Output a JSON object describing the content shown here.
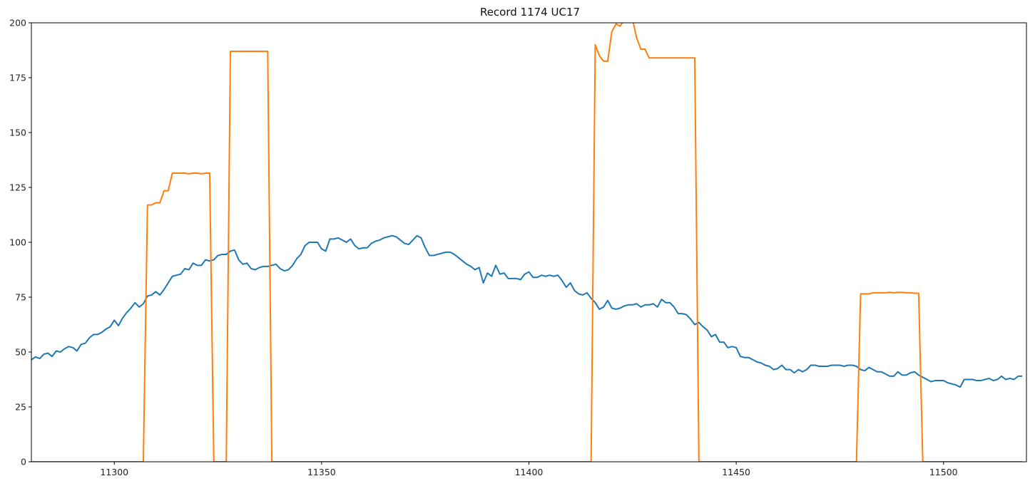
{
  "chart_data": {
    "type": "line",
    "title": "Record 1174 UC17",
    "xlabel": "",
    "ylabel": "",
    "xlim": [
      11280,
      11520
    ],
    "ylim": [
      0,
      200
    ],
    "grid": false,
    "legend": "none",
    "x_ticks": [
      11300,
      11350,
      11400,
      11450,
      11500
    ],
    "y_ticks": [
      0,
      25,
      50,
      75,
      100,
      125,
      150,
      175,
      200
    ],
    "series": [
      {
        "color": "#1f77b4",
        "points": [
          [
            11280,
            46.5
          ],
          [
            11281,
            47.8
          ],
          [
            11282,
            47
          ],
          [
            11283,
            49
          ],
          [
            11284,
            49.5
          ],
          [
            11285,
            48
          ],
          [
            11286,
            50.5
          ],
          [
            11287,
            50
          ],
          [
            11288,
            51.5
          ],
          [
            11289,
            52.5
          ],
          [
            11290,
            52
          ],
          [
            11291,
            50.5
          ],
          [
            11292,
            53.5
          ],
          [
            11293,
            54
          ],
          [
            11294,
            56.5
          ],
          [
            11295,
            58
          ],
          [
            11296,
            58
          ],
          [
            11297,
            59
          ],
          [
            11298,
            60.5
          ],
          [
            11299,
            61.5
          ],
          [
            11300,
            64.5
          ],
          [
            11301,
            62
          ],
          [
            11302,
            65.5
          ],
          [
            11303,
            68
          ],
          [
            11304,
            70
          ],
          [
            11305,
            72.5
          ],
          [
            11306,
            70.5
          ],
          [
            11307,
            72
          ],
          [
            11308,
            75.5
          ],
          [
            11309,
            76
          ],
          [
            11310,
            77.5
          ],
          [
            11311,
            76
          ],
          [
            11312,
            78.5
          ],
          [
            11313,
            81.5
          ],
          [
            11314,
            84.5
          ],
          [
            11315,
            85
          ],
          [
            11316,
            85.5
          ],
          [
            11317,
            88
          ],
          [
            11318,
            87.5
          ],
          [
            11319,
            90.5
          ],
          [
            11320,
            89.5
          ],
          [
            11321,
            89.5
          ],
          [
            11322,
            92
          ],
          [
            11323,
            91.5
          ],
          [
            11324,
            92
          ],
          [
            11325,
            94
          ],
          [
            11326,
            94.5
          ],
          [
            11327,
            94.5
          ],
          [
            11328,
            96
          ],
          [
            11329,
            96.5
          ],
          [
            11330,
            92
          ],
          [
            11331,
            90
          ],
          [
            11332,
            90.5
          ],
          [
            11333,
            88
          ],
          [
            11334,
            87.5
          ],
          [
            11335,
            88.5
          ],
          [
            11336,
            89
          ],
          [
            11337,
            89
          ],
          [
            11338,
            89.5
          ],
          [
            11339,
            90
          ],
          [
            11340,
            88
          ],
          [
            11341,
            87
          ],
          [
            11342,
            87.5
          ],
          [
            11343,
            89.5
          ],
          [
            11344,
            92.5
          ],
          [
            11345,
            94.5
          ],
          [
            11346,
            98.5
          ],
          [
            11347,
            100
          ],
          [
            11348,
            100
          ],
          [
            11349,
            100
          ],
          [
            11350,
            97
          ],
          [
            11351,
            96
          ],
          [
            11352,
            101.5
          ],
          [
            11353,
            101.5
          ],
          [
            11354,
            102
          ],
          [
            11355,
            101
          ],
          [
            11356,
            100
          ],
          [
            11357,
            101.5
          ],
          [
            11358,
            98.5
          ],
          [
            11359,
            97
          ],
          [
            11360,
            97.5
          ],
          [
            11361,
            97.5
          ],
          [
            11362,
            99.5
          ],
          [
            11363,
            100.5
          ],
          [
            11364,
            101
          ],
          [
            11365,
            102
          ],
          [
            11366,
            102.5
          ],
          [
            11367,
            103
          ],
          [
            11368,
            102.5
          ],
          [
            11369,
            101
          ],
          [
            11370,
            99.5
          ],
          [
            11371,
            99
          ],
          [
            11372,
            101
          ],
          [
            11373,
            103
          ],
          [
            11374,
            102
          ],
          [
            11375,
            97.5
          ],
          [
            11376,
            94
          ],
          [
            11377,
            94
          ],
          [
            11378,
            94.5
          ],
          [
            11379,
            95
          ],
          [
            11380,
            95.5
          ],
          [
            11381,
            95.5
          ],
          [
            11382,
            94.5
          ],
          [
            11383,
            93
          ],
          [
            11384,
            91.5
          ],
          [
            11385,
            90
          ],
          [
            11386,
            89
          ],
          [
            11387,
            87.5
          ],
          [
            11388,
            88.5
          ],
          [
            11389,
            81.5
          ],
          [
            11390,
            86
          ],
          [
            11391,
            84.5
          ],
          [
            11392,
            89.5
          ],
          [
            11393,
            85.5
          ],
          [
            11394,
            86
          ],
          [
            11395,
            83.5
          ],
          [
            11396,
            83.5
          ],
          [
            11397,
            83.5
          ],
          [
            11398,
            83
          ],
          [
            11399,
            85.5
          ],
          [
            11400,
            86.5
          ],
          [
            11401,
            84
          ],
          [
            11402,
            84
          ],
          [
            11403,
            85
          ],
          [
            11404,
            84.5
          ],
          [
            11405,
            85
          ],
          [
            11406,
            84.5
          ],
          [
            11407,
            85
          ],
          [
            11408,
            82.5
          ],
          [
            11409,
            79.5
          ],
          [
            11410,
            81.5
          ],
          [
            11411,
            78
          ],
          [
            11412,
            76.5
          ],
          [
            11413,
            76
          ],
          [
            11414,
            77
          ],
          [
            11415,
            74.5
          ],
          [
            11416,
            72.5
          ],
          [
            11417,
            69.5
          ],
          [
            11418,
            70.5
          ],
          [
            11419,
            73.5
          ],
          [
            11420,
            70
          ],
          [
            11421,
            69.5
          ],
          [
            11422,
            70
          ],
          [
            11423,
            71
          ],
          [
            11424,
            71.5
          ],
          [
            11425,
            71.5
          ],
          [
            11426,
            72
          ],
          [
            11427,
            70.5
          ],
          [
            11428,
            71.5
          ],
          [
            11429,
            71.5
          ],
          [
            11430,
            72
          ],
          [
            11431,
            70.5
          ],
          [
            11432,
            74
          ],
          [
            11433,
            72.5
          ],
          [
            11434,
            72.5
          ],
          [
            11435,
            70.5
          ],
          [
            11436,
            67.5
          ],
          [
            11437,
            67.5
          ],
          [
            11438,
            67
          ],
          [
            11439,
            65
          ],
          [
            11440,
            62.5
          ],
          [
            11441,
            63.5
          ],
          [
            11442,
            61.5
          ],
          [
            11443,
            60
          ],
          [
            11444,
            57
          ],
          [
            11445,
            58
          ],
          [
            11446,
            54.5
          ],
          [
            11447,
            54.5
          ],
          [
            11448,
            52
          ],
          [
            11449,
            52.5
          ],
          [
            11450,
            52
          ],
          [
            11451,
            48
          ],
          [
            11452,
            47.5
          ],
          [
            11453,
            47.5
          ],
          [
            11454,
            46.5
          ],
          [
            11455,
            45.5
          ],
          [
            11456,
            45
          ],
          [
            11457,
            44
          ],
          [
            11458,
            43.5
          ],
          [
            11459,
            42
          ],
          [
            11460,
            42.5
          ],
          [
            11461,
            44
          ],
          [
            11462,
            42
          ],
          [
            11463,
            42
          ],
          [
            11464,
            40.5
          ],
          [
            11465,
            42
          ],
          [
            11466,
            41
          ],
          [
            11467,
            42
          ],
          [
            11468,
            44
          ],
          [
            11469,
            44
          ],
          [
            11470,
            43.5
          ],
          [
            11471,
            43.5
          ],
          [
            11472,
            43.5
          ],
          [
            11473,
            44
          ],
          [
            11474,
            44
          ],
          [
            11475,
            44
          ],
          [
            11476,
            43.5
          ],
          [
            11477,
            44
          ],
          [
            11478,
            44
          ],
          [
            11479,
            43.5
          ],
          [
            11480,
            42
          ],
          [
            11481,
            41.5
          ],
          [
            11482,
            43
          ],
          [
            11483,
            42
          ],
          [
            11484,
            41
          ],
          [
            11485,
            41
          ],
          [
            11486,
            40
          ],
          [
            11487,
            39
          ],
          [
            11488,
            39
          ],
          [
            11489,
            41
          ],
          [
            11490,
            39.5
          ],
          [
            11491,
            39.5
          ],
          [
            11492,
            40.5
          ],
          [
            11493,
            41
          ],
          [
            11494,
            39.5
          ],
          [
            11495,
            38.5
          ],
          [
            11496,
            37.5
          ],
          [
            11497,
            36.5
          ],
          [
            11498,
            37
          ],
          [
            11499,
            37
          ],
          [
            11500,
            37
          ],
          [
            11501,
            36
          ],
          [
            11502,
            35.5
          ],
          [
            11503,
            35
          ],
          [
            11504,
            34
          ],
          [
            11505,
            37.5
          ],
          [
            11506,
            37.5
          ],
          [
            11507,
            37.5
          ],
          [
            11508,
            37
          ],
          [
            11509,
            37
          ],
          [
            11510,
            37.5
          ],
          [
            11511,
            38
          ],
          [
            11512,
            37
          ],
          [
            11513,
            37.5
          ],
          [
            11514,
            39
          ],
          [
            11515,
            37.5
          ],
          [
            11516,
            38
          ],
          [
            11517,
            37.5
          ],
          [
            11518,
            39
          ],
          [
            11519,
            39
          ]
        ]
      },
      {
        "color": "#ff7f0e",
        "points": [
          [
            11280,
            0
          ],
          [
            11307,
            0
          ],
          [
            11308,
            117
          ],
          [
            11309,
            117
          ],
          [
            11310,
            118
          ],
          [
            11311,
            118
          ],
          [
            11312,
            123.5
          ],
          [
            11313,
            123.5
          ],
          [
            11314,
            131.5
          ],
          [
            11315,
            131.5
          ],
          [
            11316,
            131.5
          ],
          [
            11317,
            131.5
          ],
          [
            11318,
            131.2
          ],
          [
            11319,
            131.5
          ],
          [
            11320,
            131.5
          ],
          [
            11321,
            131.2
          ],
          [
            11322,
            131.5
          ],
          [
            11323,
            131.5
          ],
          [
            11324,
            0
          ],
          [
            11327,
            0
          ],
          [
            11328,
            187
          ],
          [
            11337,
            187
          ],
          [
            11338,
            0
          ],
          [
            11415,
            0
          ],
          [
            11416,
            190
          ],
          [
            11417,
            185
          ],
          [
            11418,
            182.5
          ],
          [
            11419,
            182.5
          ],
          [
            11420,
            196
          ],
          [
            11421,
            199.5
          ],
          [
            11422,
            198.5
          ],
          [
            11423,
            201.5
          ],
          [
            11424,
            203
          ],
          [
            11425,
            201.5
          ],
          [
            11426,
            193
          ],
          [
            11427,
            188
          ],
          [
            11428,
            188
          ],
          [
            11429,
            184
          ],
          [
            11430,
            184
          ],
          [
            11440,
            184
          ],
          [
            11441,
            0
          ],
          [
            11479,
            0
          ],
          [
            11480,
            76.5
          ],
          [
            11481,
            76.5
          ],
          [
            11482,
            76.5
          ],
          [
            11483,
            77
          ],
          [
            11484,
            77
          ],
          [
            11485,
            77
          ],
          [
            11486,
            77
          ],
          [
            11487,
            77.2
          ],
          [
            11488,
            77
          ],
          [
            11489,
            77.2
          ],
          [
            11490,
            77.2
          ],
          [
            11491,
            77
          ],
          [
            11492,
            77
          ],
          [
            11493,
            76.8
          ],
          [
            11494,
            76.8
          ],
          [
            11495,
            0
          ],
          [
            11519,
            0
          ]
        ]
      }
    ]
  }
}
